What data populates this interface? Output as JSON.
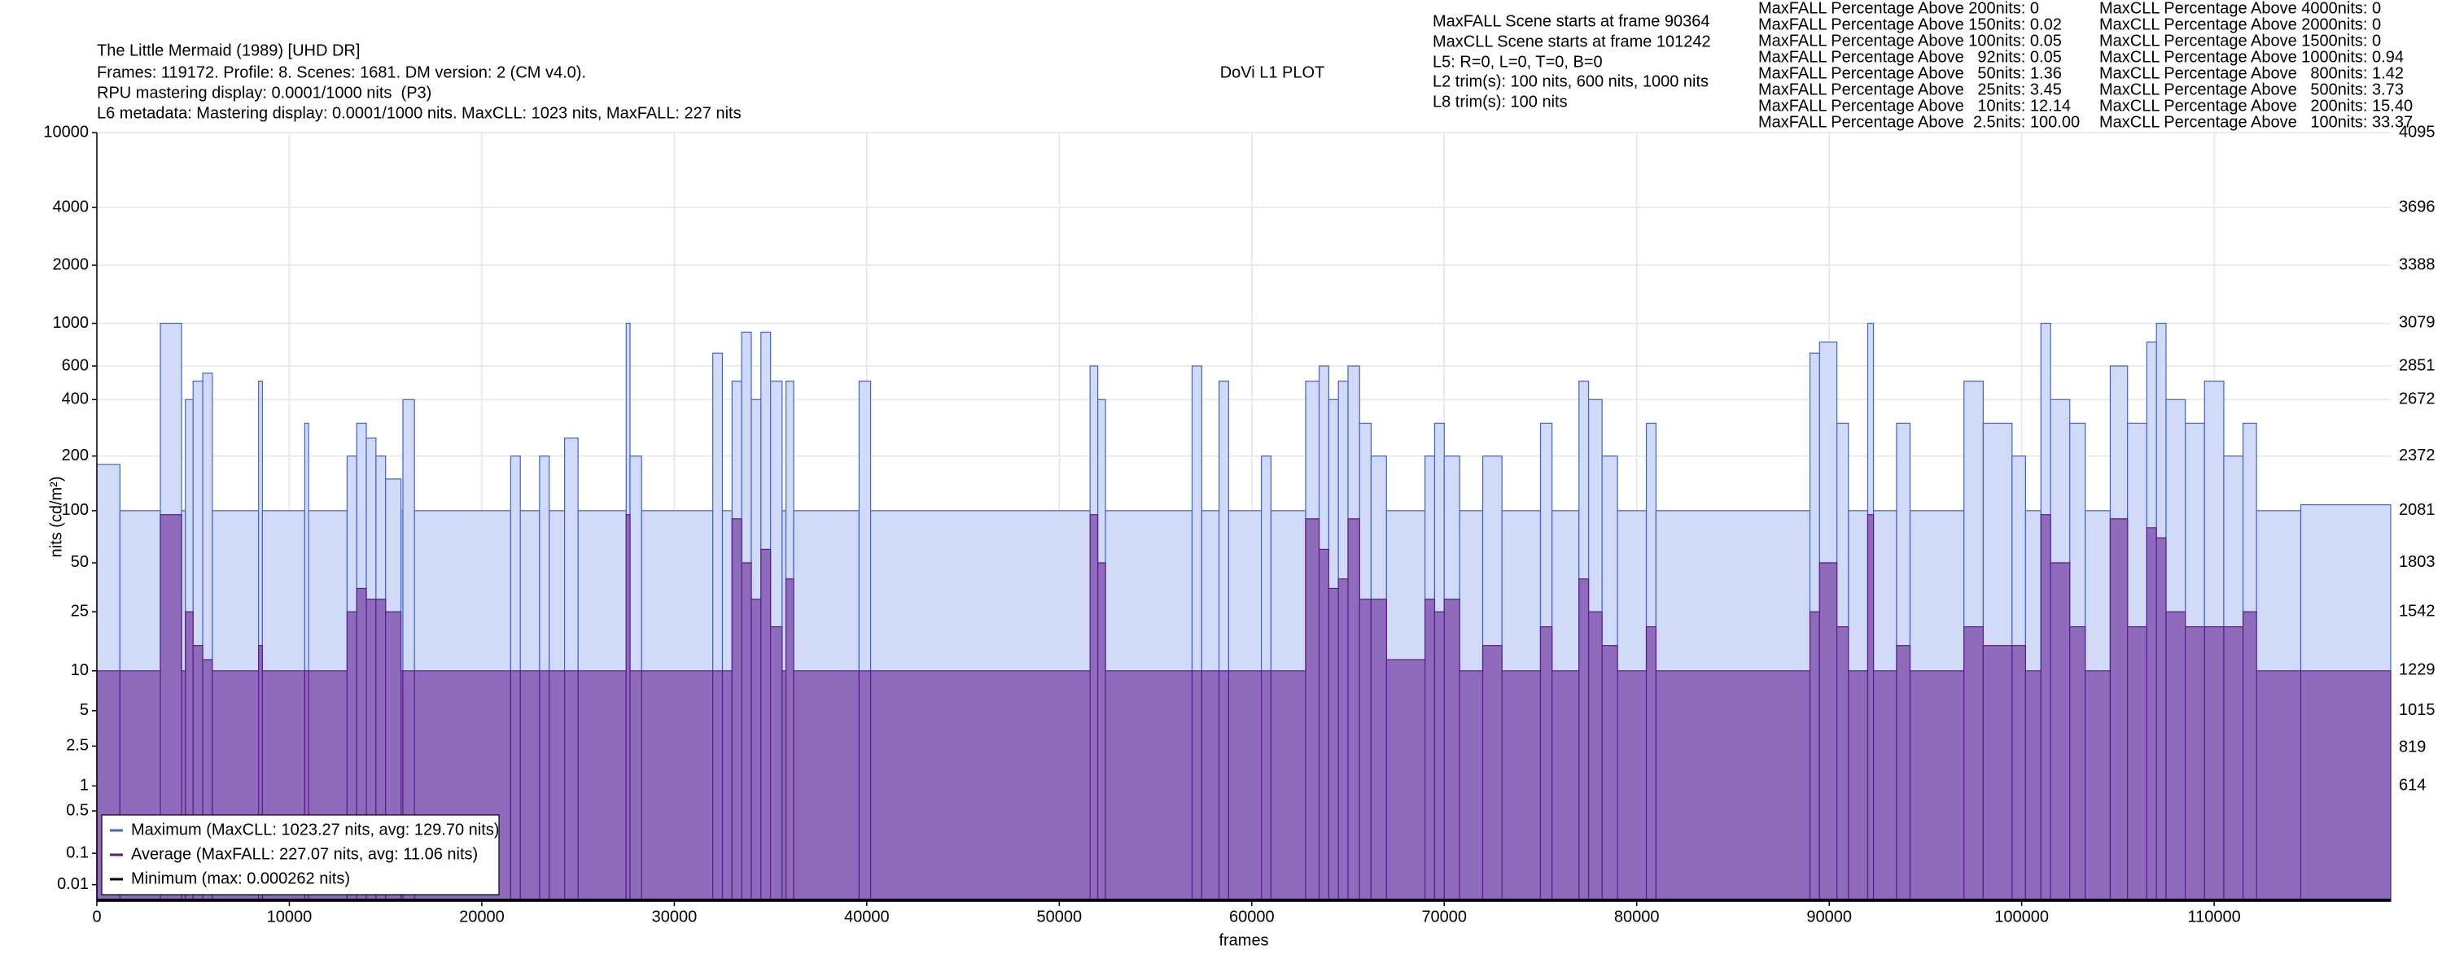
{
  "header": {
    "title": "The Little Mermaid (1989) [UHD DR]",
    "lines": [
      "Frames: 119172. Profile: 8. Scenes: 1681. DM version: 2 (CM v4.0).",
      "RPU mastering display: 0.0001/1000 nits  (P3)",
      "L6 metadata: Mastering display: 0.0001/1000 nits. MaxCLL: 1023 nits, MaxFALL: 227 nits"
    ],
    "plot_title": "DoVi L1 PLOT",
    "info": [
      "MaxFALL Scene starts at frame 90364",
      "MaxCLL Scene starts at frame 101242",
      "L5: R=0, L=0, T=0, B=0",
      "L2 trim(s): 100 nits, 600 nits, 1000 nits",
      "L8 trim(s): 100 nits"
    ],
    "stats_left": [
      "MaxFALL Percentage Above 200nits: 0",
      "MaxFALL Percentage Above 150nits: 0.02",
      "MaxFALL Percentage Above 100nits: 0.05",
      "MaxFALL Percentage Above   92nits: 0.05",
      "MaxFALL Percentage Above   50nits: 1.36",
      "MaxFALL Percentage Above   25nits: 3.45",
      "MaxFALL Percentage Above   10nits: 12.14",
      "MaxFALL Percentage Above  2.5nits: 100.00"
    ],
    "stats_right": [
      "MaxCLL Percentage Above 4000nits: 0",
      "MaxCLL Percentage Above 2000nits: 0",
      "MaxCLL Percentage Above 1500nits: 0",
      "MaxCLL Percentage Above 1000nits: 0.94",
      "MaxCLL Percentage Above   800nits: 1.42",
      "MaxCLL Percentage Above   500nits: 3.73",
      "MaxCLL Percentage Above   200nits: 15.40",
      "MaxCLL Percentage Above   100nits: 33.37"
    ]
  },
  "chart_data": {
    "type": "step-area",
    "y_scale": "pq",
    "y_label": "nits (cd/m²)",
    "x_label": "frames",
    "grid": true,
    "legend": "lower left",
    "xlim": [
      0,
      119172
    ],
    "xticks": [
      0,
      10000,
      20000,
      30000,
      40000,
      50000,
      60000,
      70000,
      80000,
      90000,
      100000,
      110000
    ],
    "ylim": [
      0,
      10000
    ],
    "yticks": [
      0.01,
      0.1,
      0.5,
      1,
      2.5,
      5,
      10,
      25,
      50,
      100,
      200,
      400,
      600,
      1000,
      2000,
      4000,
      10000
    ],
    "y2lim": [
      0,
      4095
    ],
    "y2ticks": [
      614,
      819,
      1015,
      1229,
      1542,
      1803,
      2081,
      2372,
      2672,
      2851,
      3079,
      3388,
      3696,
      4095
    ],
    "x": [
      0,
      1200,
      3300,
      4400,
      4600,
      5000,
      5500,
      6000,
      8400,
      8600,
      10800,
      11000,
      13000,
      13500,
      14000,
      14500,
      15000,
      15800,
      15900,
      16500,
      21500,
      22000,
      23000,
      23500,
      24300,
      25000,
      27500,
      27700,
      28300,
      32000,
      32500,
      33000,
      33500,
      34000,
      34500,
      35000,
      35600,
      35800,
      36200,
      39600,
      40200,
      51600,
      52000,
      52400,
      56900,
      57400,
      58300,
      58800,
      60500,
      61000,
      62800,
      63500,
      64000,
      64500,
      65000,
      65600,
      66200,
      67000,
      69000,
      69500,
      70000,
      70800,
      72000,
      73000,
      75000,
      75600,
      77000,
      77500,
      78200,
      79000,
      80500,
      81000,
      89000,
      89500,
      90400,
      91000,
      92000,
      92300,
      93500,
      94200,
      97000,
      98000,
      99500,
      100200,
      101000,
      101500,
      102500,
      103300,
      104600,
      105500,
      106500,
      107000,
      107500,
      108500,
      109500,
      110500,
      111500,
      112200,
      114500
    ],
    "series": [
      {
        "name": "Maximum (MaxCLL: 1023.27 nits, avg: 129.70 nits)",
        "color": "#3d63d6",
        "fill": "#d1daf6",
        "values": [
          180,
          100,
          1000,
          100,
          400,
          500,
          550,
          100,
          500,
          100,
          300,
          100,
          200,
          300,
          250,
          200,
          150,
          100,
          400,
          100,
          200,
          100,
          200,
          100,
          250,
          100,
          1000,
          200,
          100,
          700,
          100,
          500,
          900,
          400,
          900,
          500,
          100,
          500,
          100,
          500,
          100,
          600,
          400,
          100,
          600,
          100,
          500,
          100,
          200,
          100,
          500,
          600,
          400,
          500,
          600,
          300,
          200,
          100,
          200,
          300,
          200,
          100,
          200,
          100,
          300,
          100,
          500,
          400,
          200,
          100,
          300,
          100,
          700,
          800,
          300,
          100,
          1000,
          100,
          300,
          100,
          500,
          300,
          200,
          100,
          1000,
          400,
          300,
          100,
          600,
          300,
          800,
          1000,
          400,
          300,
          500,
          200,
          300,
          100,
          108
        ]
      },
      {
        "name": "Average (MaxFALL: 227.07 nits, avg: 11.06 nits)",
        "color": "#5a1a8e",
        "fill": "#8e6bbb",
        "values": [
          10,
          10,
          95,
          10,
          25,
          15,
          12,
          10,
          15,
          10,
          10,
          10,
          25,
          35,
          30,
          30,
          25,
          10,
          10,
          10,
          10,
          10,
          10,
          10,
          10,
          10,
          95,
          10,
          10,
          10,
          10,
          90,
          50,
          30,
          60,
          20,
          10,
          40,
          10,
          10,
          10,
          95,
          50,
          10,
          10,
          10,
          10,
          10,
          10,
          10,
          90,
          60,
          35,
          40,
          90,
          30,
          30,
          12,
          30,
          25,
          30,
          10,
          15,
          10,
          20,
          10,
          40,
          25,
          15,
          10,
          20,
          10,
          25,
          50,
          20,
          10,
          95,
          10,
          15,
          10,
          20,
          15,
          15,
          10,
          95,
          50,
          20,
          10,
          90,
          20,
          80,
          70,
          25,
          20,
          20,
          20,
          25,
          10,
          10
        ]
      },
      {
        "name": "Minimum (max: 0.000262 nits)",
        "color": "#000000",
        "x": [
          0,
          119172
        ],
        "values": [
          0.0001,
          0.0001
        ]
      }
    ]
  }
}
